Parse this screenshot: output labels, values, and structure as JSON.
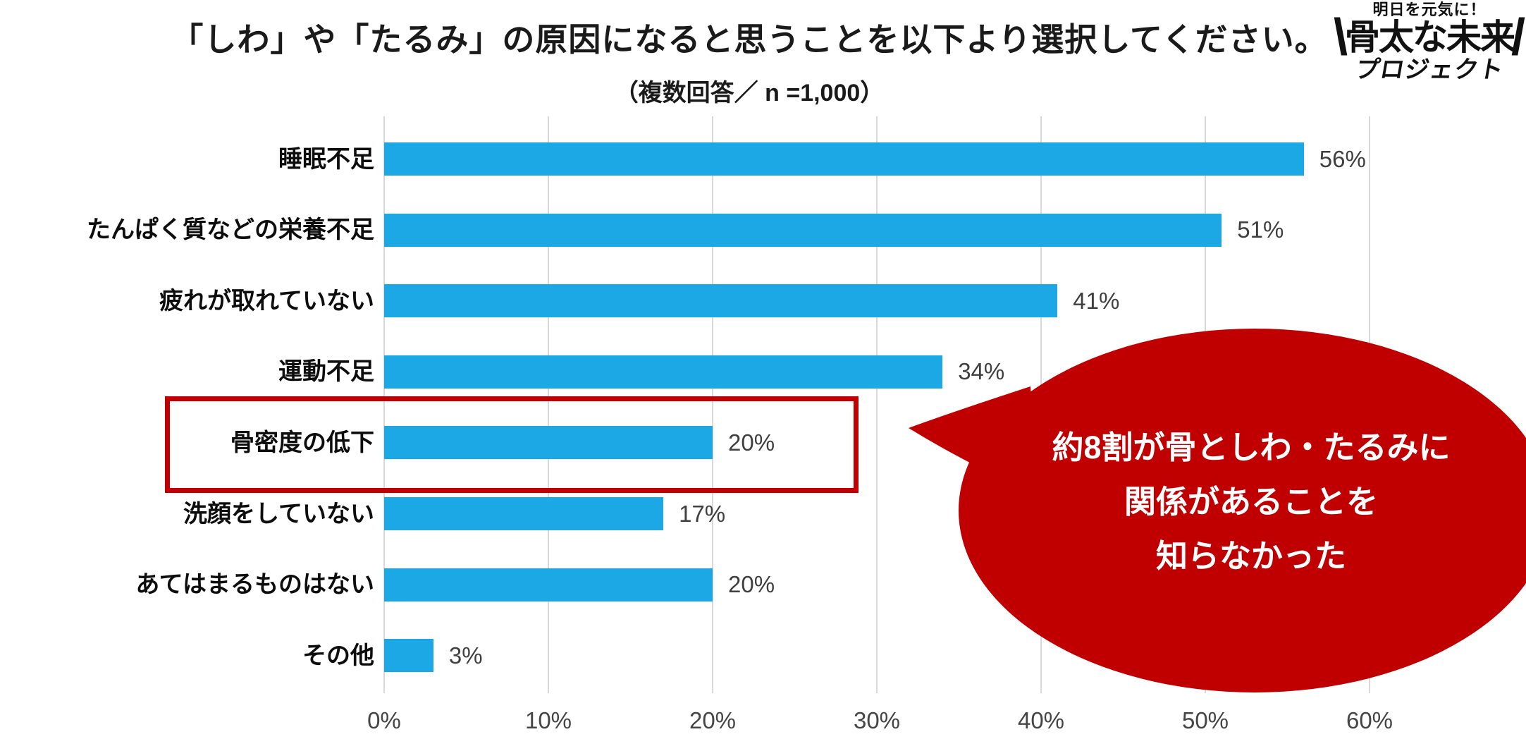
{
  "header": {
    "title": "「しわ」や「たるみ」の原因になると思うことを以下より選択してください。",
    "subtitle": "（複数回答／ n =1,000）"
  },
  "logo": {
    "tagline": "明日を元気に！",
    "slash_left": "\\",
    "main": "骨太な未来",
    "slash_right": "/",
    "sub": "プロジェクト"
  },
  "chart_data": {
    "type": "bar",
    "orientation": "horizontal",
    "title": "「しわ」や「たるみ」の原因になると思うことを以下より選択してください。",
    "subtitle": "（複数回答／ n =1,000）",
    "categories": [
      "睡眠不足",
      "たんぱく質などの栄養不足",
      "疲れが取れていない",
      "運動不足",
      "骨密度の低下",
      "洗顔をしていない",
      "あてはまるものはない",
      "その他"
    ],
    "values": [
      56,
      51,
      41,
      34,
      20,
      17,
      20,
      3
    ],
    "value_labels": [
      "56%",
      "51%",
      "41%",
      "34%",
      "20%",
      "17%",
      "20%",
      "3%"
    ],
    "unit": "%",
    "xlim": [
      0,
      60
    ],
    "xticks": [
      "0%",
      "10%",
      "20%",
      "30%",
      "40%",
      "50%",
      "60%"
    ],
    "grid": "vertical-only",
    "legend": "none",
    "bar_color": "#1BA8E4",
    "gridline_color": "#D9D9D9",
    "highlighted_category": "骨密度の低下",
    "highlight_color": "#C00000"
  },
  "callout": {
    "lines": [
      "約8割が骨としわ・たるみに",
      "関係があることを",
      "知らなかった"
    ],
    "color": "#C00000",
    "text_color": "#FFFFFF"
  }
}
